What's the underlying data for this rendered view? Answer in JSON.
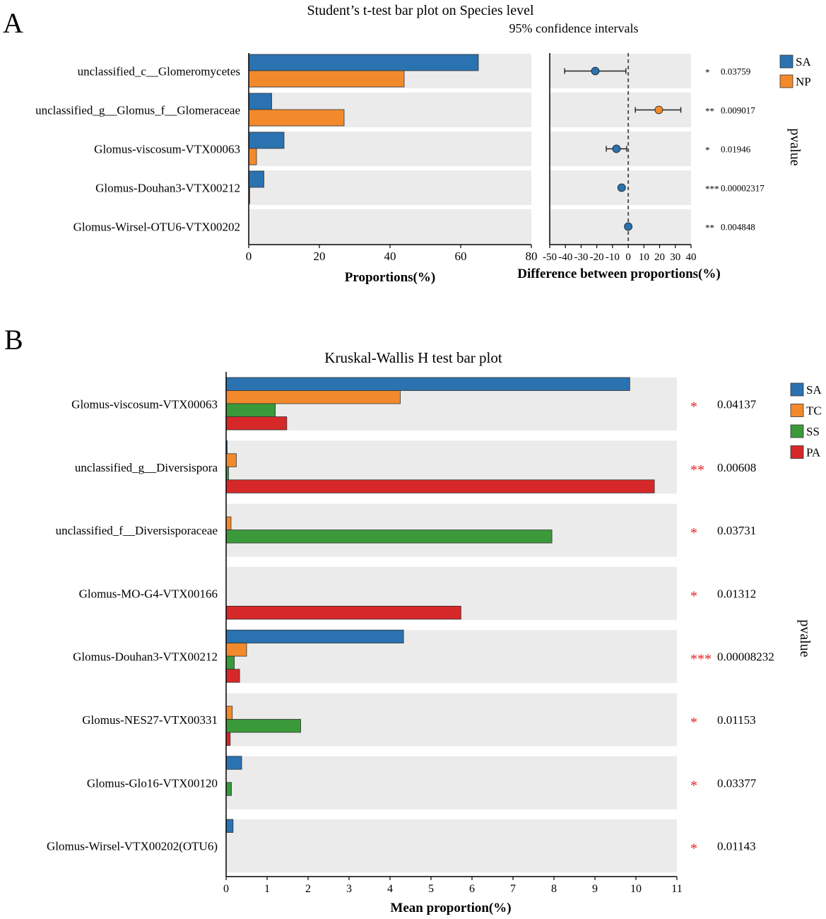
{
  "colors": {
    "SA": "#2a72b0",
    "NP": "#f28a2c",
    "TC": "#f28a2c",
    "SS": "#3a9a3a",
    "PA": "#d62828",
    "row_bg": "#ebebeb",
    "star": "#e32222"
  },
  "chart_data": [
    {
      "panel_label": "A",
      "type": "bar",
      "title": "Student’s t-test bar plot on Species level",
      "subtitle": "95% confidence intervals",
      "categories": [
        "unclassified_c__Glomeromycetes",
        "unclassified_g__Glomus_f__Glomeraceae",
        "Glomus-viscosum-VTX00063",
        "Glomus-Douhan3-VTX00212",
        "Glomus-Wirsel-OTU6-VTX00202"
      ],
      "series": [
        {
          "name": "SA",
          "values": [
            65,
            6.5,
            10,
            4.3,
            0
          ]
        },
        {
          "name": "NP",
          "values": [
            44,
            27,
            2.2,
            0.1,
            0
          ]
        }
      ],
      "xlabel": "Proportions(%)",
      "xlim": [
        0,
        80
      ],
      "xticks": [
        0,
        20,
        40,
        60,
        80
      ],
      "difference": {
        "xlabel": "Difference between proportions(%)",
        "xlim": [
          -50,
          40
        ],
        "xticks": [
          -50,
          -40,
          -30,
          -20,
          -10,
          0,
          10,
          20,
          30,
          40
        ],
        "estimates": [
          -21,
          19.5,
          -7.5,
          -4.2,
          0
        ],
        "ci_low": [
          -40.5,
          4.5,
          -14,
          null,
          null
        ],
        "ci_high": [
          -1.5,
          33.5,
          -1,
          null,
          null
        ],
        "point_groups": [
          "SA",
          "NP",
          "SA",
          "SA",
          "SA"
        ]
      },
      "pvalue_label": "pvalue",
      "stars": [
        "*",
        "**",
        "*",
        "***",
        "**"
      ],
      "pvalues": [
        "0.03759",
        "0.009017",
        "0.01946",
        "0.00002317",
        "0.004848"
      ],
      "legend": [
        "SA",
        "NP"
      ]
    },
    {
      "panel_label": "B",
      "type": "bar",
      "title": "Kruskal-Wallis H test bar plot",
      "categories": [
        "Glomus-viscosum-VTX00063",
        "unclassified_g__Diversispora",
        "unclassified_f__Diversisporaceae",
        "Glomus-MO-G4-VTX00166",
        "Glomus-Douhan3-VTX00212",
        "Glomus-NES27-VTX00331",
        "Glomus-Glo16-VTX00120",
        "Glomus-Wirsel-VTX00202(OTU6)"
      ],
      "series": [
        {
          "name": "SA",
          "values": [
            9.85,
            0.02,
            0,
            0,
            4.33,
            0,
            0.38,
            0.17
          ]
        },
        {
          "name": "TC",
          "values": [
            4.25,
            0.25,
            0.12,
            0,
            0.5,
            0.15,
            0,
            0
          ]
        },
        {
          "name": "SS",
          "values": [
            1.2,
            0.06,
            7.95,
            0,
            0.2,
            1.82,
            0.13,
            0
          ]
        },
        {
          "name": "PA",
          "values": [
            1.48,
            10.45,
            0,
            5.73,
            0.33,
            0.1,
            0,
            0
          ]
        }
      ],
      "xlabel": "Mean proportion(%)",
      "xlim": [
        0,
        11
      ],
      "xticks": [
        0,
        1,
        2,
        3,
        4,
        5,
        6,
        7,
        8,
        9,
        10,
        11
      ],
      "pvalue_label": "pvalue",
      "stars": [
        "*",
        "**",
        "*",
        "*",
        "***",
        "*",
        "*",
        "*"
      ],
      "pvalues": [
        "0.04137",
        "0.00608",
        "0.03731",
        "0.01312",
        "0.00008232",
        "0.01153",
        "0.03377",
        "0.01143"
      ],
      "legend": [
        "SA",
        "TC",
        "SS",
        "PA"
      ]
    }
  ]
}
